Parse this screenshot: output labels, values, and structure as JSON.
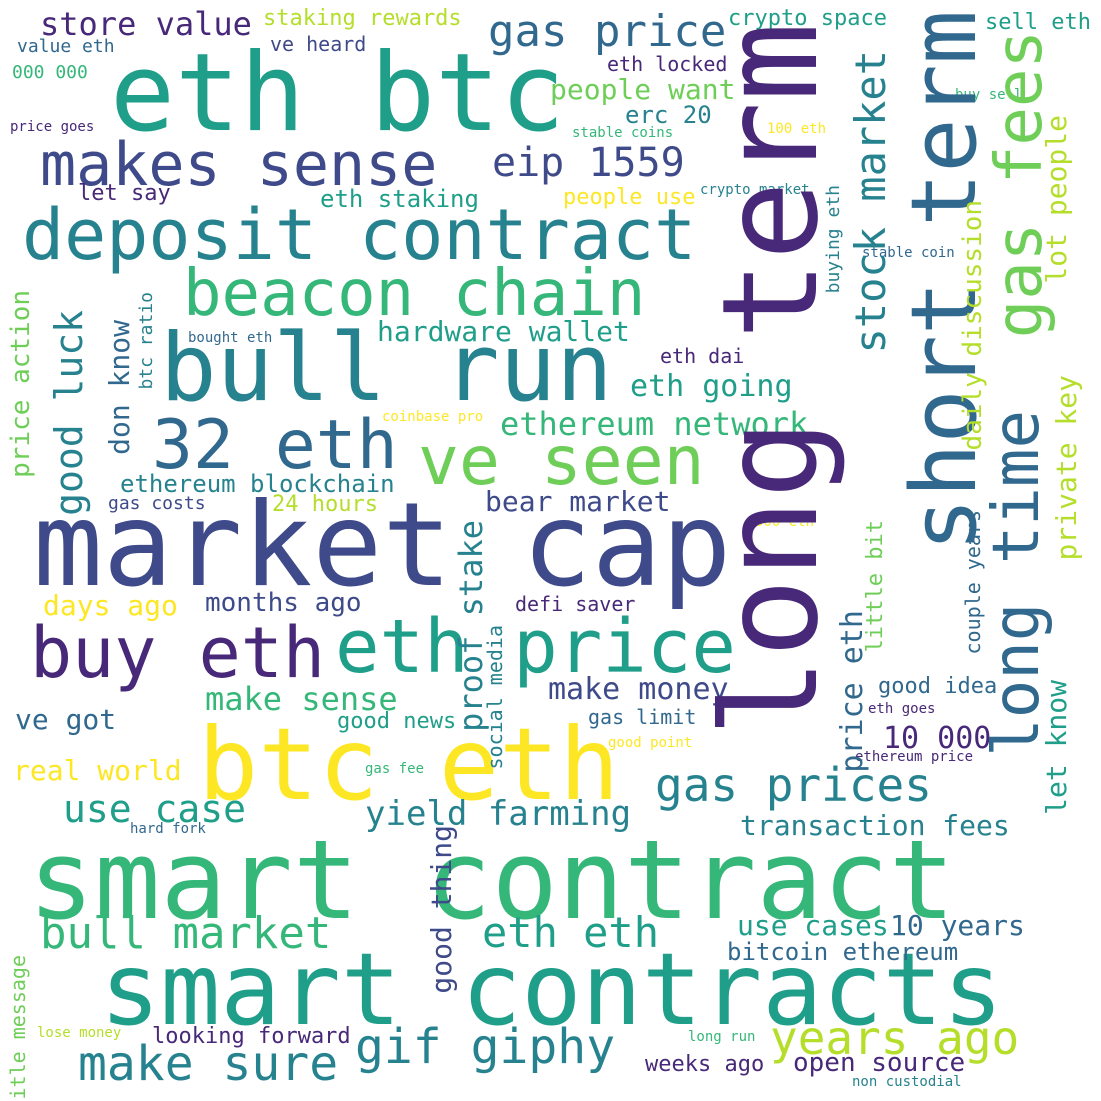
{
  "palette": {
    "dark_purple": "#482878",
    "indigo": "#3e4a89",
    "blue": "#31688e",
    "teal": "#26828e",
    "green_teal": "#1f9e89",
    "green": "#35b779",
    "light_green": "#6ece58",
    "yellow_green": "#b5de2b",
    "yellow": "#fde725"
  },
  "words": {
    "eth_btc": "eth btc",
    "long_term": "long term",
    "market_cap": "market cap",
    "smart_contract": "smart contract",
    "smart_contracts": "smart contracts",
    "bull_run": "bull run",
    "btc_eth": "btc eth",
    "deposit_contract": "deposit contract",
    "short_term": "short term",
    "makes_sense": "makes sense",
    "beacon_chain": "beacon chain",
    "eth_32": "32 eth",
    "ve_seen": "ve seen",
    "long_time": "long time",
    "gas_fees": "gas fees",
    "eth_price": "eth price",
    "buy_eth": "buy eth",
    "gif_giphy": "gif giphy",
    "years_ago": "years ago",
    "make_sure": "make sure",
    "bull_market": "bull market",
    "eth_eth": "eth eth",
    "gas_prices": "gas prices",
    "use_case": "use case",
    "eip_1559": "eip 1559",
    "gas_price": "gas price",
    "stock_market": "stock market",
    "store_value": "store value",
    "yield_farming": "yield farming",
    "good_luck": "good luck",
    "hardware_wallet": "hardware wallet",
    "ethereum_network": "ethereum network",
    "bear_market": "bear market",
    "eth_going": "eth going",
    "make_money": "make money",
    "make_sense": "make sense",
    "transaction_fees": "transaction fees",
    "use_cases": "use cases",
    "years_10": "10 years",
    "n_10_000": "10 000",
    "private_key": "private key",
    "lot_people": "lot people",
    "proof_stake": "proof stake",
    "daily_discussion": "daily discussion",
    "price_action": "price action",
    "don_know": "don know",
    "let_know": "let know",
    "good_thing": "good thing",
    "price_eth": "price eth",
    "people_want": "people want",
    "erc_20": "erc 20",
    "open_source": "open source",
    "months_ago": "months ago",
    "days_ago": "days ago",
    "real_world": "real world",
    "ve_got": "ve got",
    "ethereum_blockchain": "ethereum blockchain",
    "eth_staking": "eth staking",
    "people_use": "people use",
    "staking_rewards": "staking rewards",
    "crypto_space": "crypto space",
    "sell_eth": "sell eth",
    "ve_heard": "ve heard",
    "value_eth": "value eth",
    "n_000_000": "000 000",
    "eth_locked": "eth locked",
    "let_say": "let say",
    "bitcoin_ethereum": "bitcoin ethereum",
    "looking_forward": "looking forward",
    "weeks_ago": "weeks ago",
    "good_idea": "good idea",
    "gas_limit": "gas limit",
    "good_news": "good news",
    "defi_saver": "defi saver",
    "eth_dai": "eth dai",
    "hours_24": "24 hours",
    "gas_costs": "gas costs",
    "social_media": "social media",
    "couple_years": "couple years",
    "little_bit": "little bit",
    "buying_eth": "buying eth",
    "btc_ratio": "btc ratio",
    "title_message": "title message",
    "price_goes": "price goes",
    "stable_coins": "stable coins",
    "eth_100": "100 eth",
    "buy_sell": "buy sell",
    "crypto_market": "crypto market",
    "stable_coin": "stable coin",
    "bought_eth": "bought eth",
    "coinbase_pro": "coinbase pro",
    "eth_000": "000 eth",
    "eth_goes": "eth goes",
    "ethereum_price": "ethereum price",
    "good_point": "good point",
    "gas_fee": "gas fee",
    "hard_fork": "hard fork",
    "lose_money": "lose money",
    "long_run": "long run",
    "non_custodial": "non custodial"
  }
}
